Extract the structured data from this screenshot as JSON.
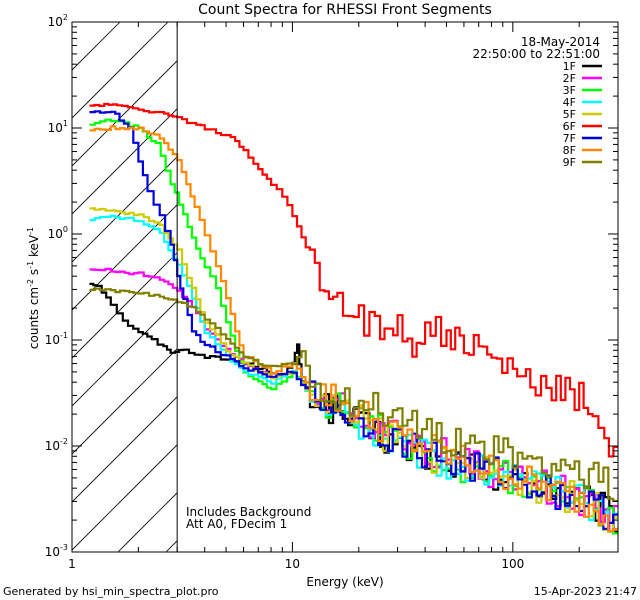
{
  "chart_data": {
    "type": "line",
    "title": "Count Spectra for RHESSI Front Segments",
    "xlabel": "Energy (keV)",
    "ylabel_main": "counts cm",
    "ylabel_sup1": "-2",
    "ylabel_mid": " s",
    "ylabel_sup2": "-1",
    "ylabel_mid2": " keV",
    "ylabel_sup3": "-1",
    "xscale": "log",
    "yscale": "log",
    "xlim": [
      1,
      300
    ],
    "ylim": [
      0.001,
      100
    ],
    "x_ticks": [
      {
        "v": 1,
        "label": "1"
      },
      {
        "v": 10,
        "label": "10"
      },
      {
        "v": 100,
        "label": "100"
      }
    ],
    "y_ticks": [
      {
        "v": 0.001,
        "base": "10",
        "exp": "-3"
      },
      {
        "v": 0.01,
        "base": "10",
        "exp": "-2"
      },
      {
        "v": 0.1,
        "base": "10",
        "exp": "-1"
      },
      {
        "v": 1,
        "base": "10",
        "exp": "0"
      },
      {
        "v": 10,
        "base": "10",
        "exp": "1"
      },
      {
        "v": 100,
        "base": "10",
        "exp": "2"
      }
    ],
    "shaded_region": {
      "x_from": 1,
      "x_to": 3,
      "style": "hatched"
    },
    "date": "18-May-2014",
    "time_range": "22:50:00 to 22:51:00",
    "notes": [
      "Includes Background",
      "Att A0, FDecim 1"
    ],
    "legend_position": "top-right",
    "series": [
      {
        "name": "1F",
        "color": "#000000",
        "x": [
          1.2,
          1.3,
          1.5,
          1.7,
          2.0,
          2.3,
          2.6,
          2.8,
          3.2,
          3.6,
          4,
          5,
          6,
          7,
          8,
          9,
          10,
          10.5,
          11,
          12,
          14,
          16,
          20,
          25,
          30,
          40,
          50,
          70,
          100,
          150,
          200,
          250,
          300
        ],
        "y": [
          0.34,
          0.33,
          0.22,
          0.15,
          0.12,
          0.1,
          0.085,
          0.078,
          0.08,
          0.075,
          0.07,
          0.065,
          0.06,
          0.055,
          0.05,
          0.048,
          0.06,
          0.09,
          0.04,
          0.03,
          0.025,
          0.02,
          0.015,
          0.012,
          0.01,
          0.008,
          0.007,
          0.006,
          0.005,
          0.004,
          0.003,
          0.0025,
          0.002
        ]
      },
      {
        "name": "2F",
        "color": "#ff00ff",
        "x": [
          1.2,
          1.5,
          2,
          2.5,
          3,
          3.5,
          4,
          5,
          6,
          7,
          8,
          10,
          12,
          15,
          20,
          25,
          30,
          40,
          50,
          70,
          100,
          150,
          200,
          250,
          300
        ],
        "y": [
          0.47,
          0.45,
          0.42,
          0.38,
          0.3,
          0.2,
          0.13,
          0.08,
          0.06,
          0.05,
          0.045,
          0.05,
          0.03,
          0.025,
          0.018,
          0.014,
          0.012,
          0.009,
          0.008,
          0.006,
          0.005,
          0.004,
          0.003,
          0.0025,
          0.002
        ]
      },
      {
        "name": "3F",
        "color": "#00ff00",
        "x": [
          1.2,
          1.5,
          2,
          2.4,
          2.8,
          3.2,
          3.5,
          4,
          4.5,
          5,
          5.5,
          6,
          7,
          8,
          10,
          12,
          15,
          20,
          30,
          50,
          100,
          200,
          300
        ],
        "y": [
          11,
          12,
          10,
          7,
          3,
          1.5,
          0.9,
          0.5,
          0.3,
          0.15,
          0.08,
          0.05,
          0.04,
          0.035,
          0.05,
          0.03,
          0.025,
          0.018,
          0.011,
          0.007,
          0.005,
          0.003,
          0.002
        ]
      },
      {
        "name": "4F",
        "color": "#00ffff",
        "x": [
          1.2,
          1.5,
          2,
          2.5,
          3,
          3.5,
          4,
          5,
          6,
          7,
          8,
          10,
          12,
          15,
          20,
          30,
          50,
          100,
          200,
          300
        ],
        "y": [
          1.4,
          1.45,
          1.35,
          1.0,
          0.5,
          0.25,
          0.12,
          0.07,
          0.05,
          0.045,
          0.04,
          0.05,
          0.03,
          0.022,
          0.016,
          0.01,
          0.007,
          0.005,
          0.003,
          0.002
        ]
      },
      {
        "name": "5F",
        "color": "#cccc00",
        "x": [
          1.2,
          1.5,
          2,
          2.5,
          3,
          3.5,
          4,
          5,
          6,
          7,
          8,
          10,
          12,
          15,
          20,
          30,
          50,
          100,
          200,
          300
        ],
        "y": [
          1.7,
          1.65,
          1.5,
          1.2,
          0.7,
          0.3,
          0.15,
          0.08,
          0.06,
          0.05,
          0.045,
          0.05,
          0.03,
          0.024,
          0.017,
          0.011,
          0.007,
          0.005,
          0.003,
          0.002
        ]
      },
      {
        "name": "6F",
        "color": "#ff0000",
        "x": [
          1.2,
          1.4,
          1.6,
          2,
          2.5,
          3,
          3.5,
          4,
          4.5,
          5,
          5.5,
          6,
          7,
          8,
          9,
          10,
          11,
          12,
          14,
          16,
          18,
          20,
          25,
          30,
          35,
          40,
          50,
          60,
          70,
          80,
          100,
          120,
          150,
          200,
          230,
          260,
          300
        ],
        "y": [
          16,
          17,
          16,
          15,
          14,
          12.5,
          11,
          10,
          9,
          8.5,
          7.5,
          6,
          4,
          3,
          2.2,
          1.5,
          0.9,
          0.6,
          0.35,
          0.25,
          0.2,
          0.16,
          0.12,
          0.14,
          0.1,
          0.13,
          0.11,
          0.09,
          0.08,
          0.06,
          0.05,
          0.04,
          0.035,
          0.03,
          0.02,
          0.012,
          0.01
        ]
      },
      {
        "name": "7F",
        "color": "#0000dd",
        "x": [
          1.2,
          1.5,
          1.8,
          2,
          2.2,
          2.5,
          2.8,
          3,
          3.2,
          3.5,
          4,
          5,
          6,
          7,
          8,
          10,
          12,
          15,
          20,
          30,
          50,
          100,
          200,
          300
        ],
        "y": [
          14,
          14.5,
          10,
          5,
          2.5,
          1.5,
          0.8,
          0.4,
          0.25,
          0.12,
          0.09,
          0.07,
          0.055,
          0.05,
          0.045,
          0.05,
          0.03,
          0.024,
          0.018,
          0.011,
          0.007,
          0.005,
          0.003,
          0.002
        ]
      },
      {
        "name": "8F",
        "color": "#ff8800",
        "x": [
          1.2,
          1.5,
          2,
          2.5,
          3,
          3.3,
          3.6,
          4,
          4.5,
          5,
          5.5,
          6,
          7,
          8,
          10,
          12,
          15,
          20,
          30,
          50,
          100,
          200,
          300
        ],
        "y": [
          9.5,
          10,
          10,
          8,
          5,
          3,
          1.8,
          1.0,
          0.5,
          0.25,
          0.12,
          0.07,
          0.06,
          0.05,
          0.06,
          0.035,
          0.028,
          0.02,
          0.012,
          0.008,
          0.005,
          0.003,
          0.002
        ]
      },
      {
        "name": "9F",
        "color": "#808000",
        "x": [
          1.2,
          1.5,
          2,
          2.5,
          3,
          3.5,
          4,
          5,
          6,
          7,
          8,
          10,
          11,
          12,
          15,
          20,
          30,
          50,
          100,
          150,
          200,
          300
        ],
        "y": [
          0.3,
          0.29,
          0.28,
          0.26,
          0.23,
          0.2,
          0.16,
          0.1,
          0.07,
          0.06,
          0.055,
          0.06,
          0.08,
          0.04,
          0.03,
          0.025,
          0.018,
          0.012,
          0.008,
          0.007,
          0.006,
          0.004
        ]
      }
    ]
  },
  "footer": {
    "generated_by": "Generated by hsi_min_spectra_plot.pro",
    "timestamp": "15-Apr-2023 21:47"
  }
}
